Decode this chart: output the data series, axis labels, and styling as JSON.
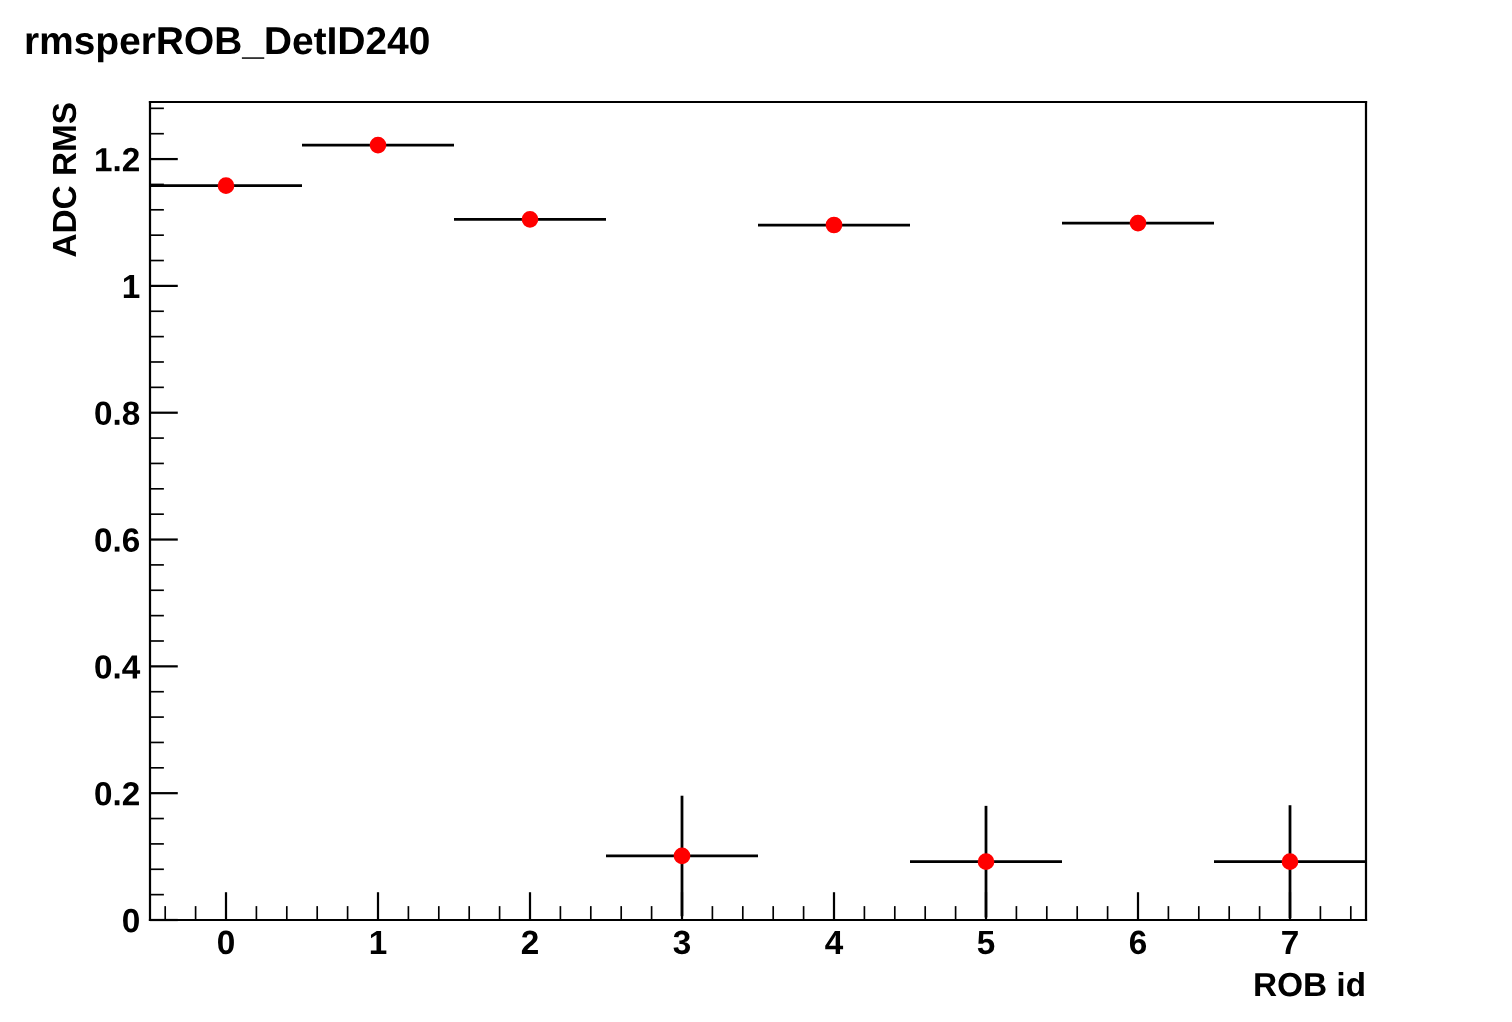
{
  "chart_data": {
    "type": "scatter",
    "title": "rmsperROB_DetID240",
    "xlabel": "ROB id",
    "ylabel": "ADC RMS",
    "x": [
      0,
      1,
      2,
      3,
      4,
      5,
      6,
      7
    ],
    "values": [
      1.158,
      1.222,
      1.105,
      0.101,
      1.096,
      0.092,
      1.099,
      0.092
    ],
    "errors": [
      null,
      null,
      null,
      0.095,
      null,
      0.088,
      null,
      0.089
    ],
    "xerrors": [
      0.5,
      0.5,
      0.5,
      0.5,
      0.5,
      0.5,
      0.5,
      0.5
    ],
    "color": "#ff0000",
    "marker": "circle",
    "xlim": [
      -0.5,
      7.5
    ],
    "xticks": [
      0,
      1,
      2,
      3,
      4,
      5,
      6,
      7
    ],
    "ylim": [
      0,
      1.29
    ],
    "yticks": [
      0,
      0.2,
      0.4,
      0.6,
      0.8,
      1,
      1.2
    ],
    "grid": false
  }
}
